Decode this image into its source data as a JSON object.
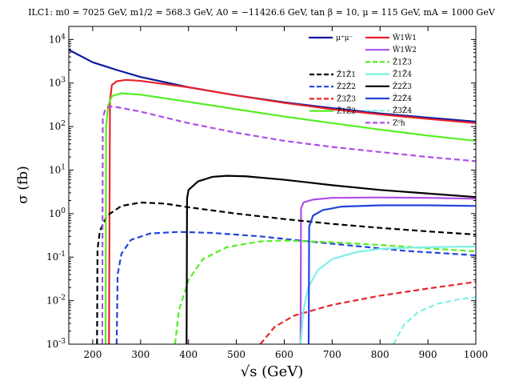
{
  "chart_data": {
    "type": "line",
    "title": "ILC1: m0 = 7025 GeV, m1/2 = 568.3 GeV, A0 = −11426.6 GeV, tan β = 10, μ = 115 GeV, mA = 1000 GeV",
    "xlabel": "√s (GeV)",
    "ylabel": "σ (fb)",
    "xlim": [
      150,
      1000
    ],
    "ylim": [
      0.001,
      20000
    ],
    "yscale": "log",
    "grid": false,
    "legend_position": "top-right",
    "x_ticks": [
      "200",
      "300",
      "400",
      "500",
      "600",
      "700",
      "800",
      "900",
      "1000"
    ],
    "y_ticks": [
      "10^-3",
      "10^-2",
      "10^-1",
      "10^0",
      "10^1",
      "10^2",
      "10^3",
      "10^4"
    ],
    "series": [
      {
        "name": "μ⁺μ⁻",
        "color": "#0a1a9c",
        "dash": "solid",
        "points": [
          [
            150,
            5800
          ],
          [
            200,
            3000
          ],
          [
            250,
            2000
          ],
          [
            300,
            1380
          ],
          [
            400,
            800
          ],
          [
            500,
            520
          ],
          [
            600,
            360
          ],
          [
            700,
            265
          ],
          [
            800,
            200
          ],
          [
            900,
            160
          ],
          [
            1000,
            130
          ]
        ]
      },
      {
        "name": "W̃1W̃1",
        "color": "#e8232a",
        "dash": "solid",
        "points": [
          [
            234,
            0.001
          ],
          [
            236,
            400
          ],
          [
            240,
            900
          ],
          [
            250,
            1100
          ],
          [
            270,
            1180
          ],
          [
            300,
            1120
          ],
          [
            400,
            800
          ],
          [
            500,
            520
          ],
          [
            600,
            350
          ],
          [
            700,
            250
          ],
          [
            800,
            190
          ],
          [
            900,
            150
          ],
          [
            1000,
            120
          ]
        ]
      },
      {
        "name": "W̃1W̃2",
        "color": "#b04ee8",
        "dash": "solid",
        "points": [
          [
            634,
            0.001
          ],
          [
            635,
            1.3
          ],
          [
            640,
            1.8
          ],
          [
            660,
            2.1
          ],
          [
            700,
            2.3
          ],
          [
            800,
            2.35
          ],
          [
            900,
            2.3
          ],
          [
            1000,
            2.2
          ]
        ]
      },
      {
        "name": "Z̃1Z̃1",
        "color": "#000000",
        "dash": "dashed",
        "points": [
          [
            209,
            0.001
          ],
          [
            210,
            0.15
          ],
          [
            215,
            0.4
          ],
          [
            230,
            0.9
          ],
          [
            260,
            1.5
          ],
          [
            300,
            1.8
          ],
          [
            350,
            1.7
          ],
          [
            400,
            1.4
          ],
          [
            500,
            1.0
          ],
          [
            600,
            0.75
          ],
          [
            700,
            0.58
          ],
          [
            800,
            0.47
          ],
          [
            900,
            0.39
          ],
          [
            1000,
            0.33
          ]
        ]
      },
      {
        "name": "Z̃2Z̃2",
        "color": "#2244dd",
        "dash": "dashed",
        "points": [
          [
            250,
            0.001
          ],
          [
            252,
            0.04
          ],
          [
            260,
            0.12
          ],
          [
            280,
            0.25
          ],
          [
            320,
            0.35
          ],
          [
            380,
            0.38
          ],
          [
            450,
            0.36
          ],
          [
            550,
            0.3
          ],
          [
            650,
            0.23
          ],
          [
            750,
            0.18
          ],
          [
            850,
            0.14
          ],
          [
            1000,
            0.11
          ]
        ]
      },
      {
        "name": "Z̃3Z̃3",
        "color": "#e8232a",
        "dash": "dashed",
        "points": [
          [
            550,
            0.001
          ],
          [
            580,
            0.0025
          ],
          [
            620,
            0.0045
          ],
          [
            700,
            0.008
          ],
          [
            800,
            0.013
          ],
          [
            900,
            0.019
          ],
          [
            1000,
            0.027
          ]
        ]
      },
      {
        "name": "Z̃1Z̃2",
        "color": "#55ee22",
        "dash": "solid",
        "points": [
          [
            227,
            0.001
          ],
          [
            228,
            100
          ],
          [
            232,
            300
          ],
          [
            240,
            500
          ],
          [
            260,
            580
          ],
          [
            300,
            540
          ],
          [
            400,
            370
          ],
          [
            500,
            250
          ],
          [
            600,
            170
          ],
          [
            700,
            120
          ],
          [
            800,
            85
          ],
          [
            900,
            62
          ],
          [
            1000,
            47
          ]
        ]
      },
      {
        "name": "Z̃1Z̃3",
        "color": "#55ee22",
        "dash": "dashed",
        "points": [
          [
            372,
            0.001
          ],
          [
            380,
            0.006
          ],
          [
            400,
            0.03
          ],
          [
            430,
            0.09
          ],
          [
            480,
            0.17
          ],
          [
            550,
            0.23
          ],
          [
            600,
            0.24
          ],
          [
            700,
            0.22
          ],
          [
            800,
            0.19
          ],
          [
            900,
            0.16
          ],
          [
            1000,
            0.135
          ]
        ]
      },
      {
        "name": "Z̃1Z̃4",
        "color": "#7ff0e6",
        "dash": "solid",
        "points": [
          [
            634,
            0.001
          ],
          [
            640,
            0.006
          ],
          [
            650,
            0.02
          ],
          [
            670,
            0.05
          ],
          [
            700,
            0.09
          ],
          [
            750,
            0.13
          ],
          [
            800,
            0.155
          ],
          [
            900,
            0.17
          ],
          [
            1000,
            0.175
          ]
        ]
      },
      {
        "name": "Z̃2Z̃3",
        "color": "#000000",
        "dash": "solid",
        "points": [
          [
            396,
            0.001
          ],
          [
            397,
            2.2
          ],
          [
            400,
            3.5
          ],
          [
            420,
            5.5
          ],
          [
            450,
            7.0
          ],
          [
            480,
            7.4
          ],
          [
            520,
            7.2
          ],
          [
            600,
            6.0
          ],
          [
            700,
            4.5
          ],
          [
            800,
            3.5
          ],
          [
            900,
            2.9
          ],
          [
            1000,
            2.4
          ]
        ]
      },
      {
        "name": "Z̃2Z̃4",
        "color": "#2244dd",
        "dash": "solid",
        "points": [
          [
            651,
            0.001
          ],
          [
            652,
            0.5
          ],
          [
            660,
            0.9
          ],
          [
            680,
            1.2
          ],
          [
            720,
            1.45
          ],
          [
            800,
            1.55
          ],
          [
            900,
            1.55
          ],
          [
            1000,
            1.5
          ]
        ]
      },
      {
        "name": "Z̃3Z̃4",
        "color": "#7ff0e6",
        "dash": "dashed",
        "points": [
          [
            828,
            0.001
          ],
          [
            850,
            0.0028
          ],
          [
            880,
            0.0055
          ],
          [
            920,
            0.0085
          ],
          [
            960,
            0.0105
          ],
          [
            1000,
            0.012
          ]
        ]
      },
      {
        "name": "Z⁰h",
        "color": "#b04ee8",
        "dash": "dashed",
        "points": [
          [
            220,
            0.001
          ],
          [
            221,
            150
          ],
          [
            226,
            250
          ],
          [
            235,
            290
          ],
          [
            250,
            280
          ],
          [
            300,
            220
          ],
          [
            400,
            120
          ],
          [
            500,
            72
          ],
          [
            600,
            47
          ],
          [
            700,
            34
          ],
          [
            800,
            26
          ],
          [
            900,
            20
          ],
          [
            1000,
            16
          ]
        ]
      }
    ]
  }
}
